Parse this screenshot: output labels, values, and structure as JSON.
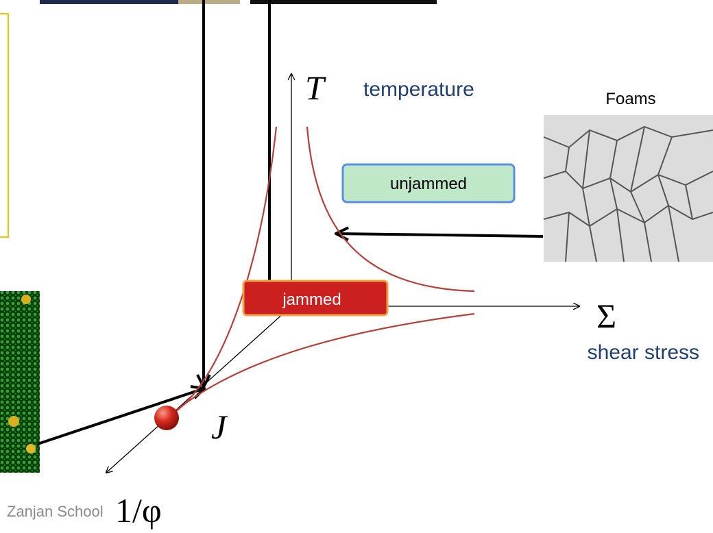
{
  "axes": {
    "temperature_symbol": "T",
    "temperature_label": "temperature",
    "stress_symbol": "Σ",
    "stress_label": "shear stress",
    "density_symbol": "1/φ",
    "jamming_point": "J"
  },
  "regions": {
    "unjammed": "unjammed",
    "jammed": "jammed"
  },
  "images": {
    "foams_label": "Foams"
  },
  "footer": "Zanjan School"
}
